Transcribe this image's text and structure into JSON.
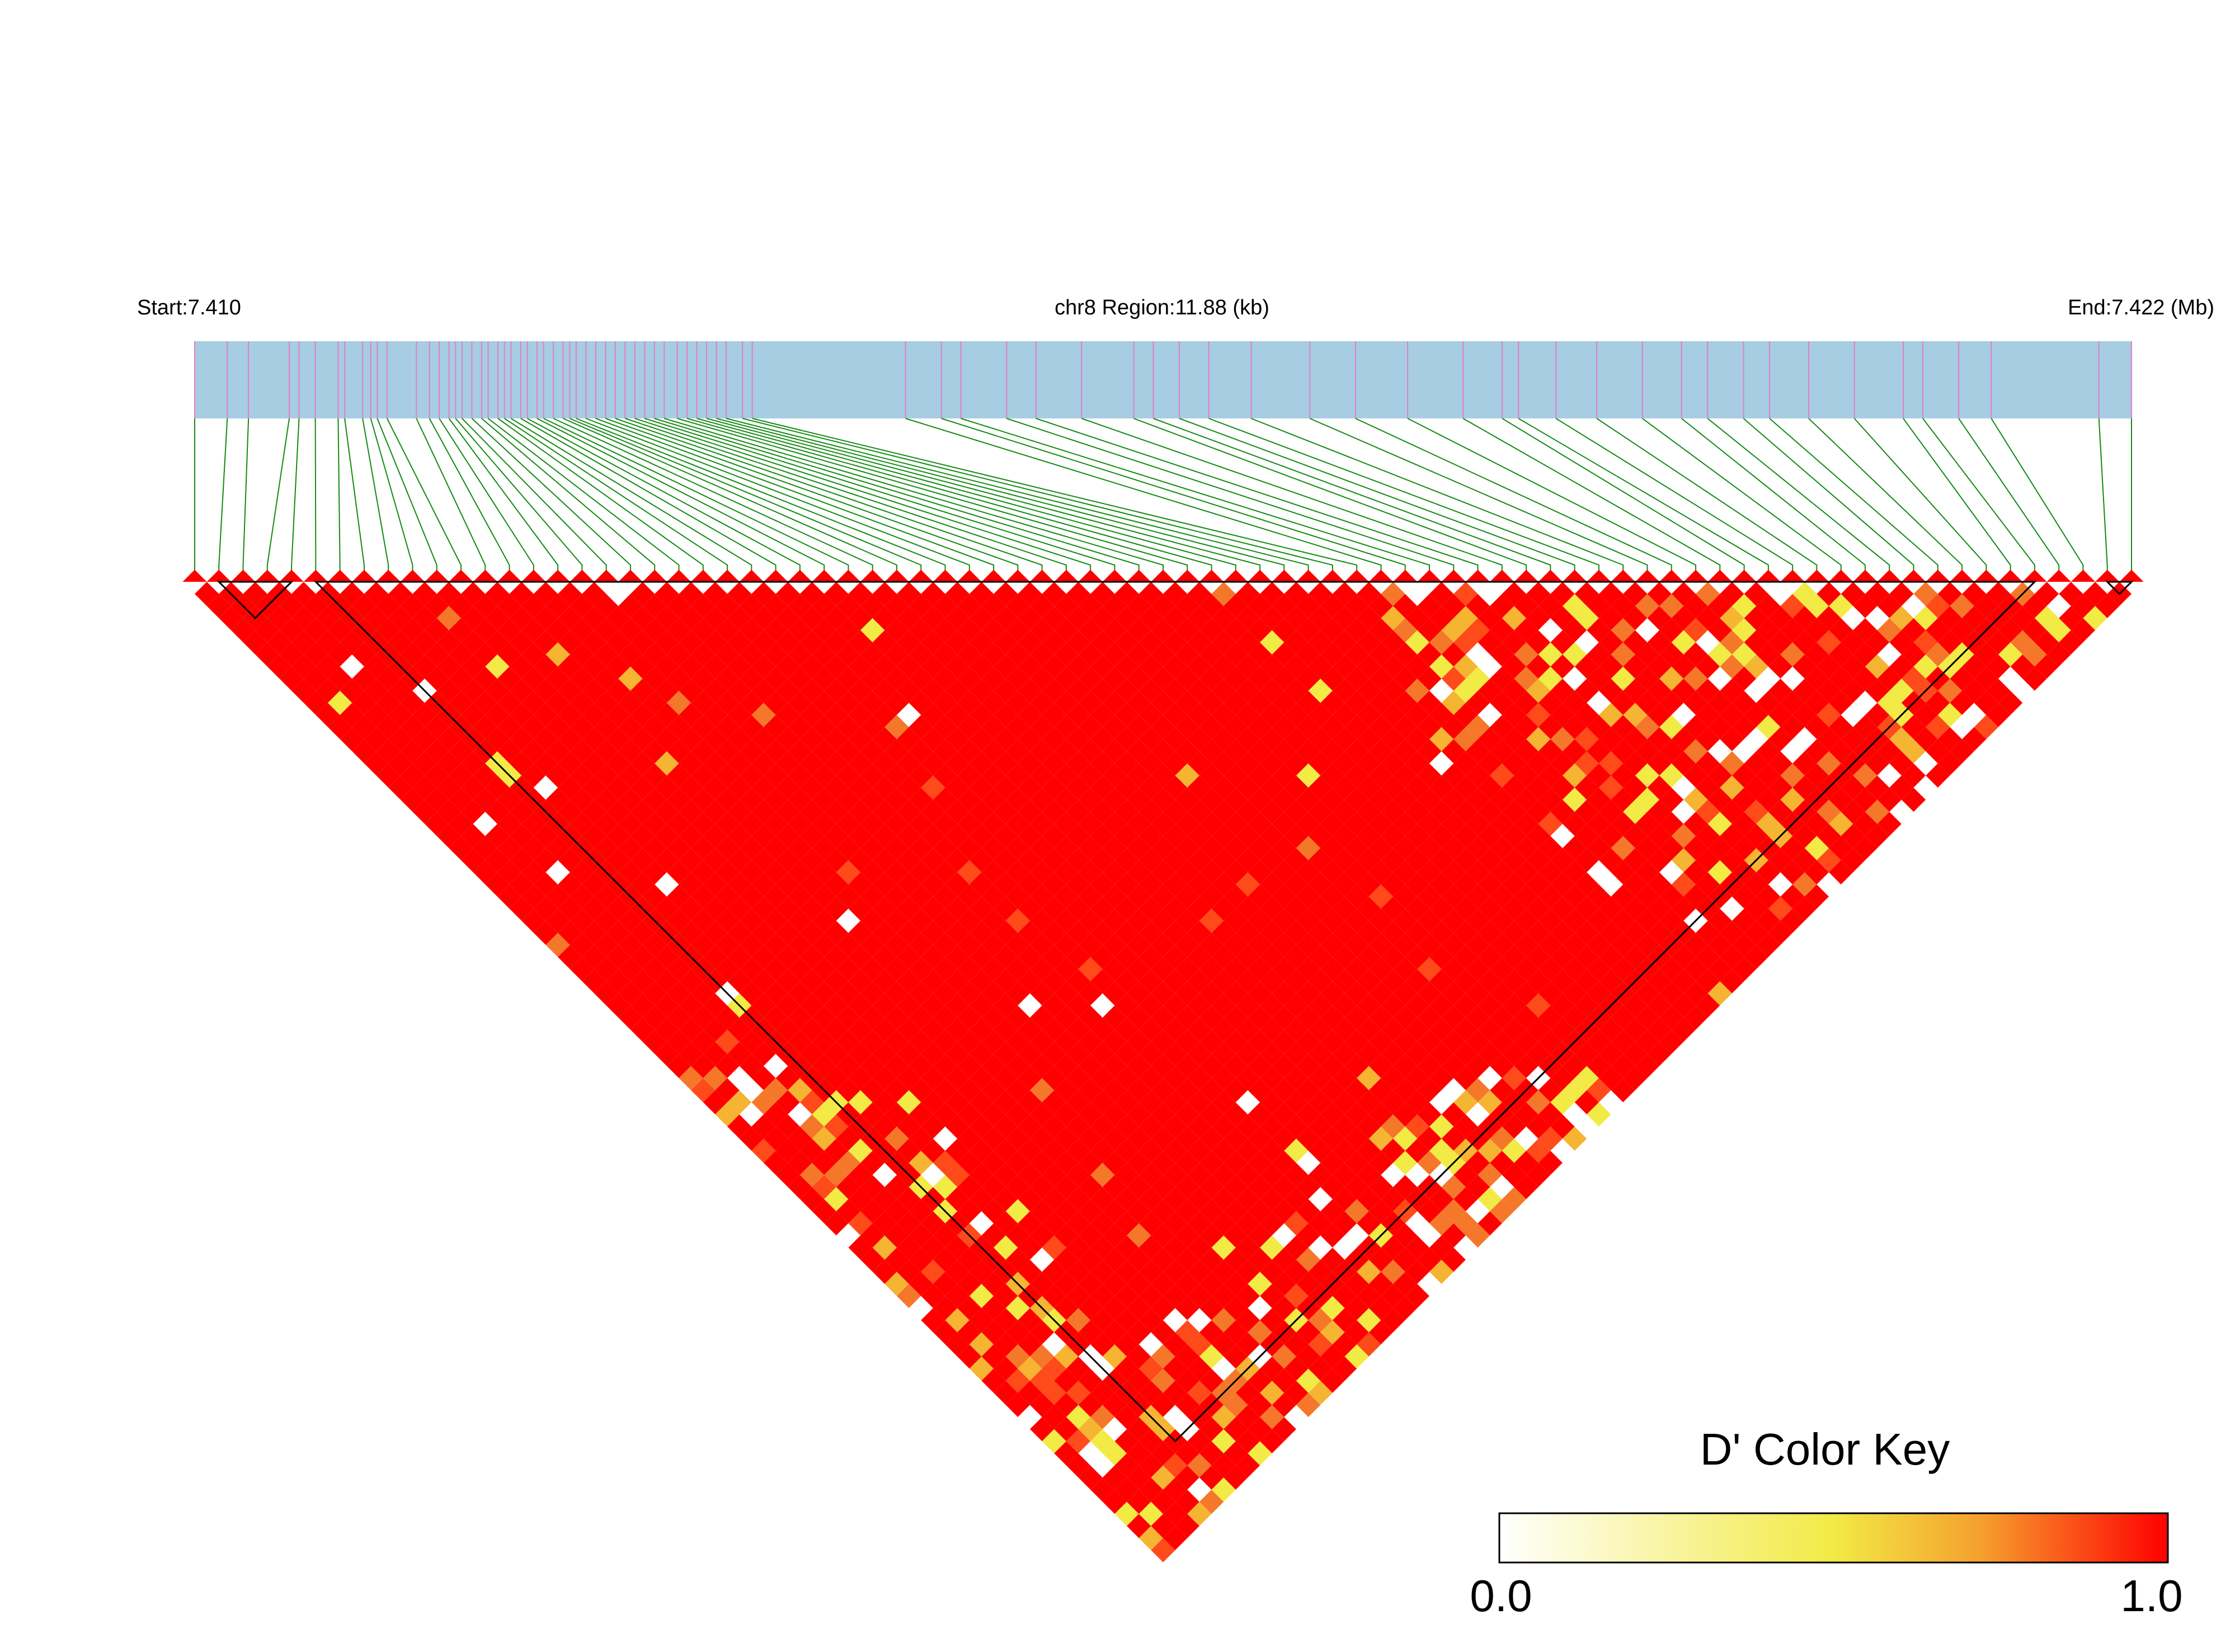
{
  "header": {
    "start_label": "Start:7.410",
    "region_label": "chr8 Region:11.88 (kb)",
    "end_label": "End:7.422 (Mb)"
  },
  "region": {
    "chromosome": "chr8",
    "start_mb": 7.41,
    "end_mb": 7.422,
    "length_kb": 11.88
  },
  "colors": {
    "track_fill": "#a6cde2",
    "snp_tick": "#e27ec8",
    "connector": "#138a13",
    "ld_high": "#ff0000",
    "ld_low": "#ffffff",
    "block_outline": "#000000"
  },
  "snp_positions_kb": [
    0.0,
    0.2,
    0.33,
    0.58,
    0.64,
    0.74,
    0.88,
    0.92,
    1.03,
    1.08,
    1.12,
    1.18,
    1.36,
    1.44,
    1.5,
    1.56,
    1.6,
    1.64,
    1.7,
    1.76,
    1.8,
    1.86,
    1.9,
    1.94,
    2.0,
    2.04,
    2.1,
    2.14,
    2.2,
    2.26,
    2.3,
    2.34,
    2.4,
    2.46,
    2.52,
    2.58,
    2.64,
    2.7,
    2.76,
    2.82,
    2.88,
    2.96,
    3.02,
    3.08,
    3.14,
    3.2,
    3.26,
    3.36,
    3.42,
    4.36,
    4.58,
    4.7,
    4.98,
    5.16,
    5.44,
    5.76,
    5.88,
    6.04,
    6.22,
    6.48,
    6.84,
    7.12,
    7.44,
    7.78,
    8.02,
    8.12,
    8.35,
    8.6,
    8.88,
    9.12,
    9.28,
    9.5,
    9.66,
    9.9,
    10.18,
    10.48,
    10.6,
    10.82,
    11.02,
    11.68,
    11.88
  ],
  "ld_blocks": [
    {
      "first_snp": 1,
      "last_snp": 4
    },
    {
      "first_snp": 5,
      "last_snp": 76
    },
    {
      "first_snp": 79,
      "last_snp": 80
    }
  ],
  "color_key": {
    "title": "D' Color Key",
    "min_label": "0.0",
    "max_label": "1.0",
    "stops": [
      "#ffffff",
      "#f2ea45",
      "#f5a02e",
      "#ff0000"
    ]
  }
}
